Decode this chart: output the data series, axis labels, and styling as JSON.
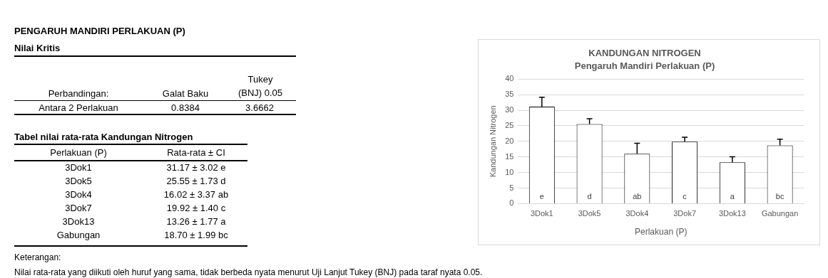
{
  "chart_data": [
    {
      "type": "other",
      "title": "PENGARUH MANDIRI PERLAKUAN (P)",
      "subtitle": "Nilai Kritis",
      "annotations": [
        "Perbandingan:",
        "Galat Baku",
        "Tukey (BNJ) 0.05",
        "Antara 2 Perlakuan",
        "0.8384",
        "3.6662",
        "Tabel nilai rata-rata Kandungan Nitrogen",
        "Perlakuan (P)",
        "Rata-rata ± CI",
        "3Dok1",
        "31.17 ± 3.02 e",
        "3Dok5",
        "25.55 ± 1.73 d",
        "3Dok4",
        "16.02 ± 3.37 ab",
        "3Dok7",
        "19.92 ± 1.40 c",
        "3Dok13",
        "13.26 ± 1.77 a",
        "Gabungan",
        "18.70 ± 1.99 bc",
        "Keterangan:",
        "Nilai rata-rata yang diikuti oleh huruf yang sama, tidak berbeda nyata menurut Uji Lanjut Tukey (BNJ) pada taraf nyata 0.05."
      ]
    },
    {
      "type": "bar",
      "title": "KANDUNGAN NITROGEN",
      "subtitle": "Pengaruh Mandiri Perlakuan (P)",
      "xlabel": "Perlakuan (P)",
      "ylabel": "Kandungan Nitrogen",
      "categories": [
        "3Dok1",
        "3Dok5",
        "3Dok4",
        "3Dok7",
        "3Dok13",
        "Gabungan"
      ],
      "values": [
        31.17,
        25.55,
        16.02,
        19.92,
        13.26,
        18.7
      ],
      "errors": [
        3.02,
        1.73,
        3.37,
        1.4,
        1.77,
        1.99
      ],
      "value_labels": [
        "e",
        "d",
        "ab",
        "c",
        "a",
        "bc"
      ],
      "color": "#ffffff",
      "ylim": [
        0,
        40
      ],
      "yticks": [
        0,
        5,
        10,
        15,
        20,
        25,
        30,
        35,
        40
      ],
      "grid": "y",
      "legend": false
    }
  ]
}
